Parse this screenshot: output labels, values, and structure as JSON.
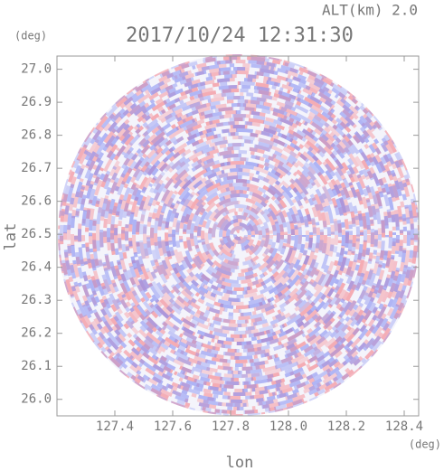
{
  "chart_data": {
    "type": "radar-ppi",
    "title": "2017/10/24 12:31:30",
    "subtitle": "ALT(km) 2.0",
    "x_label": "lon",
    "y_label": "lat",
    "x_unit": "(deg)",
    "y_unit": "(deg)",
    "xlim": [
      127.2,
      128.45
    ],
    "xticks": [
      127.4,
      127.6,
      127.8,
      {
        "value": 128,
        "label": "128.0"
      },
      128.2,
      128.4
    ],
    "ylim": [
      25.95,
      27.04
    ],
    "yticks": [
      {
        "value": 26,
        "label": "26.0"
      },
      26.1,
      26.2,
      26.3,
      26.4,
      26.5,
      26.6,
      26.7,
      26.8,
      26.9,
      {
        "value": 27,
        "label": "27.0"
      }
    ]
  }
}
